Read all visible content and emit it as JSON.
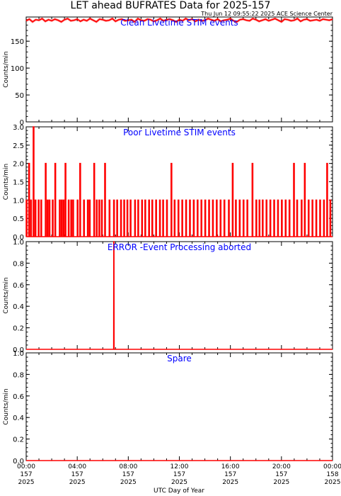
{
  "header": {
    "title": "LET ahead BUFRATES Data for 2025-157",
    "timestamp": "Thu Jun 12 09:55:22 2025 ACE Science Center"
  },
  "xaxis": {
    "label": "UTC Day of Year",
    "ticks": [
      {
        "hour": 0,
        "time": "00:00",
        "doy": "157",
        "year": "2025"
      },
      {
        "hour": 4,
        "time": "04:00",
        "doy": "157",
        "year": "2025"
      },
      {
        "hour": 8,
        "time": "08:00",
        "doy": "157",
        "year": "2025"
      },
      {
        "hour": 12,
        "time": "12:00",
        "doy": "157",
        "year": "2025"
      },
      {
        "hour": 16,
        "time": "16:00",
        "doy": "157",
        "year": "2025"
      },
      {
        "hour": 20,
        "time": "20:00",
        "doy": "157",
        "year": "2025"
      },
      {
        "hour": 24,
        "time": "00:00",
        "doy": "158",
        "year": "2025"
      }
    ]
  },
  "colors": {
    "data": "#ff0000",
    "panel_title": "#0000ff",
    "axes": "#000000"
  },
  "chart_data": [
    {
      "type": "line",
      "title": "Clean Livetime STIM events",
      "ylabel": "Counts/min",
      "xlim": [
        0,
        24
      ],
      "ylim": [
        0,
        195
      ],
      "yticks": [
        0,
        50,
        100,
        150
      ],
      "ytick_labels": [
        "0",
        "50",
        "100",
        "150"
      ],
      "x": [
        0,
        0.25,
        0.5,
        0.75,
        1,
        1.25,
        1.5,
        1.75,
        2,
        2.25,
        2.5,
        2.75,
        3,
        3.25,
        3.5,
        3.75,
        4,
        4.25,
        4.5,
        4.75,
        5,
        5.25,
        5.5,
        5.75,
        6,
        6.25,
        6.5,
        6.75,
        7,
        7.25,
        7.5,
        7.75,
        8,
        8.25,
        8.5,
        8.75,
        9,
        9.25,
        9.5,
        9.75,
        10,
        10.25,
        10.5,
        10.75,
        11,
        11.25,
        11.5,
        11.75,
        12,
        12.25,
        12.5,
        12.75,
        13,
        13.25,
        13.5,
        13.75,
        14,
        14.25,
        14.5,
        14.75,
        15,
        15.25,
        15.5,
        15.75,
        16,
        16.25,
        16.5,
        16.75,
        17,
        17.25,
        17.5,
        17.75,
        18,
        18.25,
        18.5,
        18.75,
        19,
        19.25,
        19.5,
        19.75,
        20,
        20.25,
        20.5,
        20.75,
        21,
        21.25,
        21.5,
        21.75,
        22,
        22.25,
        22.5,
        22.75,
        23,
        23.25,
        23.5,
        23.75,
        24
      ],
      "y": [
        188,
        191,
        186,
        190,
        189,
        192,
        187,
        190,
        188,
        191,
        189,
        186,
        190,
        192,
        188,
        189,
        191,
        187,
        190,
        188,
        192,
        189,
        186,
        191,
        190,
        188,
        189,
        192,
        187,
        190,
        191,
        188,
        189,
        190,
        186,
        192,
        189,
        188,
        191,
        190,
        187,
        189,
        192,
        188,
        190,
        191,
        189,
        186,
        190,
        188,
        192,
        189,
        191,
        187,
        190,
        188,
        189,
        192,
        190,
        188,
        191,
        187,
        189,
        190,
        192,
        188,
        186,
        190,
        191,
        189,
        188,
        192,
        190,
        187,
        189,
        191,
        188,
        190,
        192,
        189,
        186,
        191,
        190,
        188,
        189,
        192,
        187,
        190,
        191,
        188,
        189,
        190,
        188,
        191,
        190,
        189,
        191
      ]
    },
    {
      "type": "line",
      "title": "Poor Livetime STIM events",
      "ylabel": "Counts/min",
      "xlim": [
        0,
        24
      ],
      "ylim": [
        0,
        3
      ],
      "yticks": [
        0,
        0.5,
        1,
        1.5,
        2,
        2.5,
        3
      ],
      "ytick_labels": [
        "0.0",
        "0.5",
        "1.0",
        "1.5",
        "2.0",
        "2.5",
        "3.0"
      ],
      "x": [
        0.0,
        0.2,
        0.35,
        0.55,
        0.7,
        0.95,
        1.15,
        1.5,
        1.65,
        1.8,
        2.05,
        2.25,
        2.6,
        2.75,
        2.9,
        3.05,
        3.3,
        3.5,
        3.65,
        4.0,
        4.2,
        4.5,
        4.8,
        4.95,
        5.3,
        5.5,
        5.7,
        5.9,
        6.15,
        6.5,
        6.85,
        7.1,
        7.4,
        7.65,
        7.9,
        8.15,
        8.5,
        8.75,
        9.05,
        9.3,
        9.6,
        9.85,
        10.15,
        10.45,
        10.7,
        11.0,
        11.35,
        11.6,
        11.9,
        12.2,
        12.5,
        12.8,
        13.1,
        13.4,
        13.7,
        14.0,
        14.3,
        14.6,
        14.9,
        15.2,
        15.5,
        15.85,
        16.15,
        16.4,
        16.7,
        17.0,
        17.3,
        17.7,
        18.0,
        18.25,
        18.5,
        18.8,
        19.1,
        19.4,
        19.7,
        20.0,
        20.3,
        20.6,
        20.95,
        21.2,
        21.55,
        21.8,
        22.1,
        22.4,
        22.7,
        23.0,
        23.3,
        23.55,
        23.8
      ],
      "y": [
        1,
        2,
        1,
        3,
        1,
        1,
        1,
        2,
        1,
        1,
        1,
        2,
        1,
        1,
        1,
        2,
        1,
        1,
        1,
        1,
        2,
        1,
        1,
        1,
        2,
        1,
        1,
        1,
        2,
        1,
        1,
        1,
        1,
        1,
        1,
        1,
        1,
        1,
        1,
        1,
        1,
        1,
        1,
        1,
        1,
        1,
        2,
        1,
        1,
        1,
        1,
        1,
        1,
        1,
        1,
        1,
        1,
        1,
        1,
        1,
        1,
        1,
        2,
        1,
        1,
        1,
        1,
        2,
        1,
        1,
        1,
        1,
        1,
        1,
        1,
        1,
        1,
        1,
        2,
        1,
        1,
        2,
        1,
        1,
        1,
        1,
        1,
        2,
        1
      ]
    },
    {
      "type": "line",
      "title": "ERROR -Event Processing aborted",
      "ylabel": "Counts/min",
      "xlim": [
        0,
        24
      ],
      "ylim": [
        0,
        1
      ],
      "yticks": [
        0,
        0.2,
        0.4,
        0.6,
        0.8,
        1.0
      ],
      "ytick_labels": [
        "0.0",
        "0.2",
        "0.4",
        "0.6",
        "0.8",
        "1.0"
      ],
      "x": [
        0,
        6.85,
        6.86,
        6.88,
        6.89,
        24
      ],
      "y": [
        0,
        0,
        1,
        1,
        0,
        0
      ]
    },
    {
      "type": "line",
      "title": "Spare",
      "ylabel": "Counts/min",
      "xlim": [
        0,
        24
      ],
      "ylim": [
        0,
        1
      ],
      "yticks": [
        0,
        0.2,
        0.4,
        0.6,
        0.8,
        1.0
      ],
      "ytick_labels": [
        "0.0",
        "0.2",
        "0.4",
        "0.6",
        "0.8",
        "1.0"
      ],
      "x": [
        0,
        24
      ],
      "y": [
        0,
        0
      ]
    }
  ]
}
